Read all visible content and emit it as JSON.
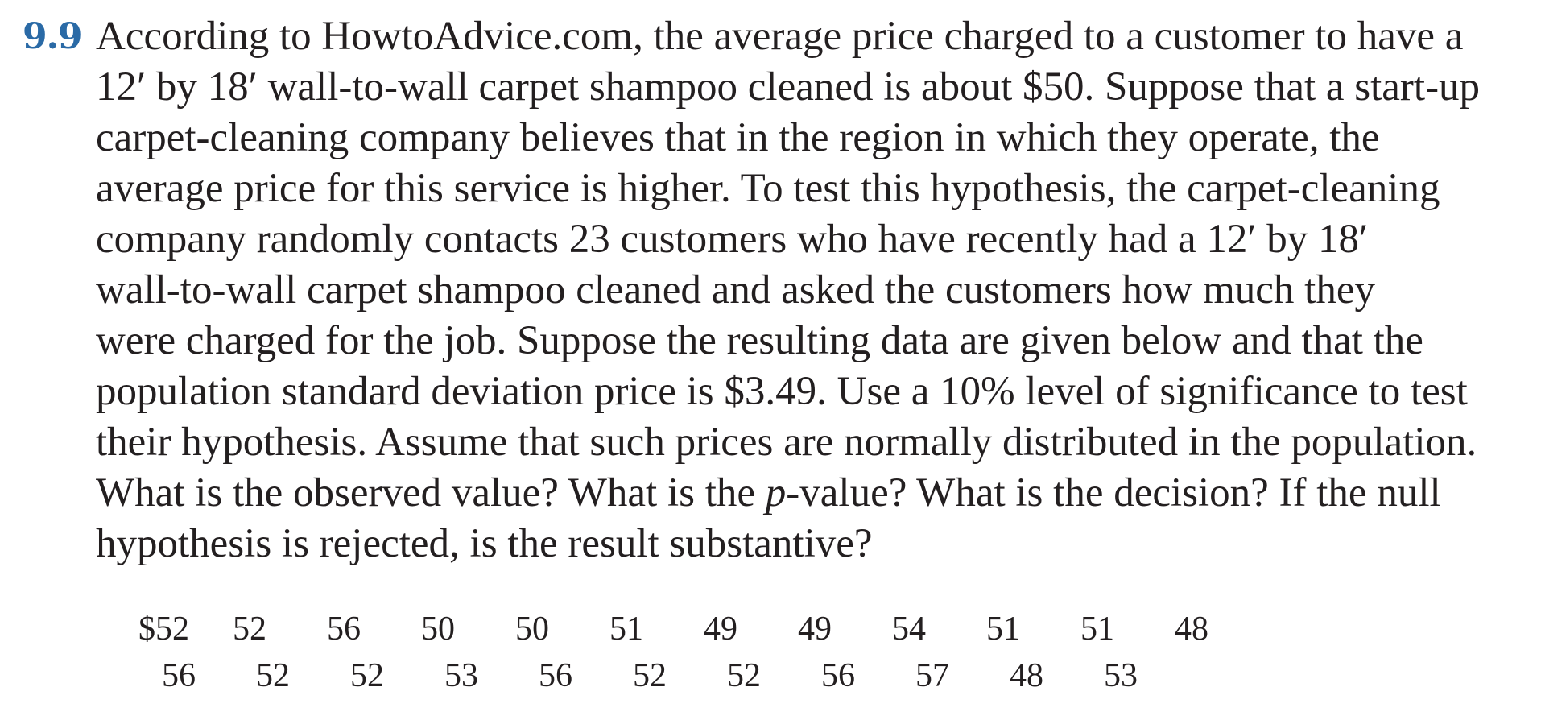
{
  "problem": {
    "number": "9.9",
    "lines": {
      "l1": "According to HowtoAdvice.com, the average price charged to a customer to have a",
      "l2": "12′ by 18′ wall-to-wall carpet shampoo cleaned is about $50. Suppose that a start-up",
      "l3": "carpet-cleaning company believes that in the region in which they operate, the",
      "l4": "average price for this service is higher. To test this hypothesis, the carpet-cleaning",
      "l5": "company randomly contacts 23 customers who have recently had a 12′ by 18′",
      "l6": "wall-to-wall carpet shampoo cleaned and asked the customers how much they",
      "l7": "were charged for the job. Suppose the resulting data are given below and that the",
      "l8": "population standard deviation price is $3.49. Use a 10% level of significance to test",
      "l9": "their hypothesis. Assume that such prices are normally distributed in the population.",
      "l10_before": "What is the observed value? What is the ",
      "l10_italic": "p",
      "l10_after": "-value? What is the decision? If the null",
      "l11": "hypothesis is rejected, is the result substantive?"
    }
  },
  "data": {
    "row1": [
      "$52",
      "52",
      "56",
      "50",
      "50",
      "51",
      "49",
      "49",
      "54",
      "51",
      "51",
      "48"
    ],
    "row2": [
      "56",
      "52",
      "52",
      "53",
      "56",
      "52",
      "52",
      "56",
      "57",
      "48",
      "53"
    ]
  }
}
